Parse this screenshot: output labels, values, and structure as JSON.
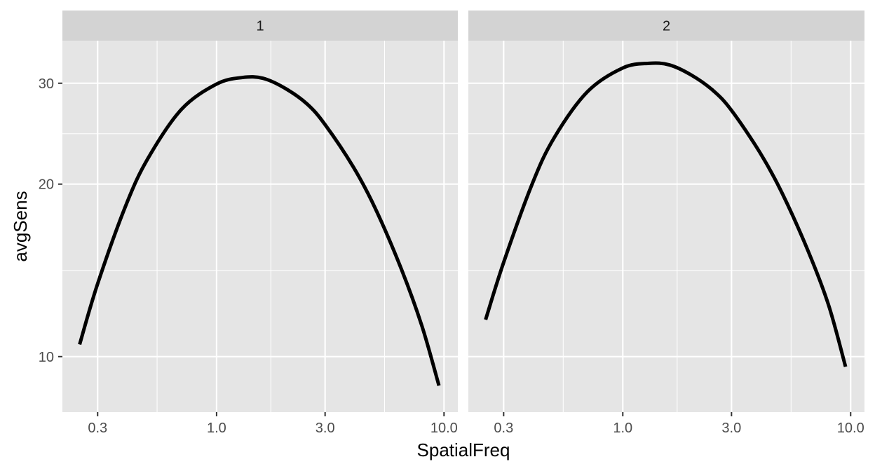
{
  "chart_data": {
    "type": "line",
    "facet_variable_values": [
      "1",
      "2"
    ],
    "xlabel": "SpatialFreq",
    "ylabel": "avgSens",
    "x_scale": "log10",
    "y_scale": "log10",
    "x_ticks": [
      0.3,
      1.0,
      3.0,
      10.0
    ],
    "x_tick_labels": [
      "0.3",
      "1.0",
      "3.0",
      "10.0"
    ],
    "x_minor_breaks": [
      0.5477,
      1.7321,
      5.4772
    ],
    "y_ticks": [
      10,
      20,
      30
    ],
    "y_tick_labels": [
      "10",
      "20",
      "30"
    ],
    "y_minor_breaks": [
      14.142,
      24.495
    ],
    "xlim": [
      0.21,
      11.5
    ],
    "ylim": [
      8.0,
      35.6
    ],
    "grid": true,
    "facets": [
      {
        "label": "1",
        "x": [
          0.25,
          0.3,
          0.4,
          0.5,
          0.7,
          1.0,
          1.3,
          1.6,
          2.0,
          2.5,
          3.0,
          4.0,
          5.0,
          6.5,
          8.0,
          9.5
        ],
        "y": [
          10.5,
          13.4,
          18.4,
          22.2,
          27.0,
          29.9,
          30.7,
          30.6,
          29.4,
          27.6,
          25.4,
          21.4,
          18.1,
          14.2,
          11.3,
          8.9
        ]
      },
      {
        "label": "2",
        "x": [
          0.25,
          0.3,
          0.4,
          0.5,
          0.7,
          1.0,
          1.3,
          1.6,
          2.0,
          2.5,
          3.0,
          4.0,
          5.0,
          6.5,
          8.0,
          9.5
        ],
        "y": [
          11.6,
          14.6,
          20.0,
          24.1,
          29.0,
          31.9,
          32.5,
          32.3,
          31.0,
          29.1,
          26.9,
          22.7,
          19.3,
          15.3,
          12.3,
          9.6
        ]
      }
    ]
  }
}
